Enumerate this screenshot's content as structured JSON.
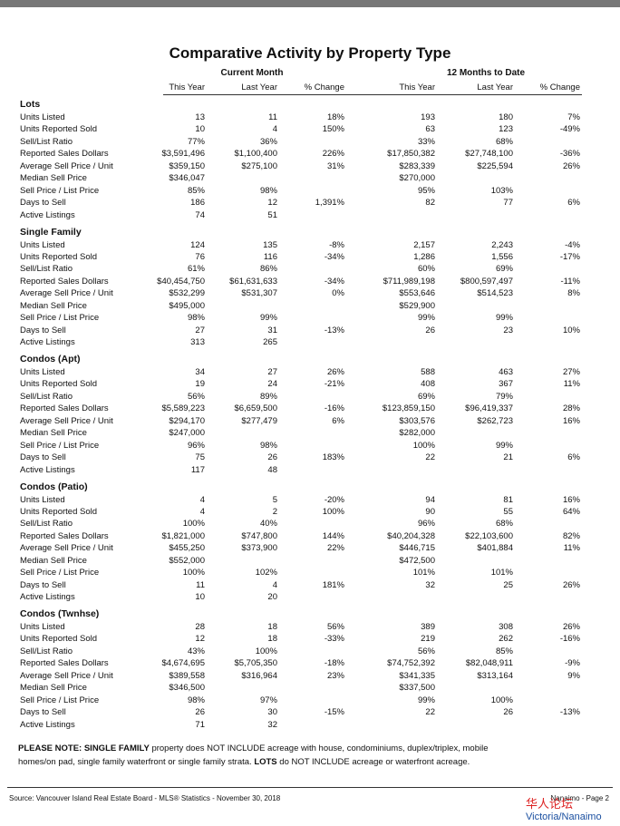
{
  "title": "Comparative Activity by Property Type",
  "groups": [
    "Current Month",
    "12 Months to Date"
  ],
  "columns": [
    "This Year",
    "Last Year",
    "% Change",
    "This Year",
    "Last Year",
    "% Change"
  ],
  "sections": [
    {
      "name": "Lots",
      "rows": [
        [
          "Units Listed",
          "13",
          "11",
          "18%",
          "193",
          "180",
          "7%"
        ],
        [
          "Units Reported Sold",
          "10",
          "4",
          "150%",
          "63",
          "123",
          "-49%"
        ],
        [
          "Sell/List Ratio",
          "77%",
          "36%",
          null,
          "33%",
          "68%",
          null
        ],
        [
          "Reported Sales Dollars",
          "$3,591,496",
          "$1,100,400",
          "226%",
          "$17,850,382",
          "$27,748,100",
          "-36%"
        ],
        [
          "Average Sell Price / Unit",
          "$359,150",
          "$275,100",
          "31%",
          "$283,339",
          "$225,594",
          "26%"
        ],
        [
          "Median Sell Price",
          "$346,047",
          null,
          null,
          "$270,000",
          null,
          null
        ],
        [
          "Sell Price / List Price",
          "85%",
          "98%",
          null,
          "95%",
          "103%",
          null
        ],
        [
          "Days to Sell",
          "186",
          "12",
          "1,391%",
          "82",
          "77",
          "6%"
        ],
        [
          "Active Listings",
          "74",
          "51",
          null,
          null,
          null,
          null
        ]
      ]
    },
    {
      "name": "Single Family",
      "rows": [
        [
          "Units Listed",
          "124",
          "135",
          "-8%",
          "2,157",
          "2,243",
          "-4%"
        ],
        [
          "Units Reported Sold",
          "76",
          "116",
          "-34%",
          "1,286",
          "1,556",
          "-17%"
        ],
        [
          "Sell/List Ratio",
          "61%",
          "86%",
          null,
          "60%",
          "69%",
          null
        ],
        [
          "Reported Sales Dollars",
          "$40,454,750",
          "$61,631,633",
          "-34%",
          "$711,989,198",
          "$800,597,497",
          "-11%"
        ],
        [
          "Average Sell Price / Unit",
          "$532,299",
          "$531,307",
          "0%",
          "$553,646",
          "$514,523",
          "8%"
        ],
        [
          "Median Sell Price",
          "$495,000",
          null,
          null,
          "$529,900",
          null,
          null
        ],
        [
          "Sell Price / List Price",
          "98%",
          "99%",
          null,
          "99%",
          "99%",
          null
        ],
        [
          "Days to Sell",
          "27",
          "31",
          "-13%",
          "26",
          "23",
          "10%"
        ],
        [
          "Active Listings",
          "313",
          "265",
          null,
          null,
          null,
          null
        ]
      ]
    },
    {
      "name": "Condos (Apt)",
      "rows": [
        [
          "Units Listed",
          "34",
          "27",
          "26%",
          "588",
          "463",
          "27%"
        ],
        [
          "Units Reported Sold",
          "19",
          "24",
          "-21%",
          "408",
          "367",
          "11%"
        ],
        [
          "Sell/List Ratio",
          "56%",
          "89%",
          null,
          "69%",
          "79%",
          null
        ],
        [
          "Reported Sales Dollars",
          "$5,589,223",
          "$6,659,500",
          "-16%",
          "$123,859,150",
          "$96,419,337",
          "28%"
        ],
        [
          "Average Sell Price / Unit",
          "$294,170",
          "$277,479",
          "6%",
          "$303,576",
          "$262,723",
          "16%"
        ],
        [
          "Median Sell Price",
          "$247,000",
          null,
          null,
          "$282,000",
          null,
          null
        ],
        [
          "Sell Price / List Price",
          "96%",
          "98%",
          null,
          "100%",
          "99%",
          null
        ],
        [
          "Days to Sell",
          "75",
          "26",
          "183%",
          "22",
          "21",
          "6%"
        ],
        [
          "Active Listings",
          "117",
          "48",
          null,
          null,
          null,
          null
        ]
      ]
    },
    {
      "name": "Condos (Patio)",
      "rows": [
        [
          "Units Listed",
          "4",
          "5",
          "-20%",
          "94",
          "81",
          "16%"
        ],
        [
          "Units Reported Sold",
          "4",
          "2",
          "100%",
          "90",
          "55",
          "64%"
        ],
        [
          "Sell/List Ratio",
          "100%",
          "40%",
          null,
          "96%",
          "68%",
          null
        ],
        [
          "Reported Sales Dollars",
          "$1,821,000",
          "$747,800",
          "144%",
          "$40,204,328",
          "$22,103,600",
          "82%"
        ],
        [
          "Average Sell Price / Unit",
          "$455,250",
          "$373,900",
          "22%",
          "$446,715",
          "$401,884",
          "11%"
        ],
        [
          "Median Sell Price",
          "$552,000",
          null,
          null,
          "$472,500",
          null,
          null
        ],
        [
          "Sell Price / List Price",
          "100%",
          "102%",
          null,
          "101%",
          "101%",
          null
        ],
        [
          "Days to Sell",
          "11",
          "4",
          "181%",
          "32",
          "25",
          "26%"
        ],
        [
          "Active Listings",
          "10",
          "20",
          null,
          null,
          null,
          null
        ]
      ]
    },
    {
      "name": "Condos (Twnhse)",
      "rows": [
        [
          "Units Listed",
          "28",
          "18",
          "56%",
          "389",
          "308",
          "26%"
        ],
        [
          "Units Reported Sold",
          "12",
          "18",
          "-33%",
          "219",
          "262",
          "-16%"
        ],
        [
          "Sell/List Ratio",
          "43%",
          "100%",
          null,
          "56%",
          "85%",
          null
        ],
        [
          "Reported Sales Dollars",
          "$4,674,695",
          "$5,705,350",
          "-18%",
          "$74,752,392",
          "$82,048,911",
          "-9%"
        ],
        [
          "Average Sell Price / Unit",
          "$389,558",
          "$316,964",
          "23%",
          "$341,335",
          "$313,164",
          "9%"
        ],
        [
          "Median Sell Price",
          "$346,500",
          null,
          null,
          "$337,500",
          null,
          null
        ],
        [
          "Sell Price / List Price",
          "98%",
          "97%",
          null,
          "99%",
          "100%",
          null
        ],
        [
          "Days to Sell",
          "26",
          "30",
          "-15%",
          "22",
          "26",
          "-13%"
        ],
        [
          "Active Listings",
          "71",
          "32",
          null,
          null,
          null,
          null
        ]
      ]
    }
  ],
  "note": {
    "parts": [
      {
        "text": "PLEASE NOTE: SINGLE FAMILY",
        "bold": true
      },
      {
        "text": " property does NOT INCLUDE acreage with house, condominiums, duplex/triplex, mobile homes/on pad, single family waterfront or single family strata. ",
        "bold": false
      },
      {
        "text": "LOTS",
        "bold": true
      },
      {
        "text": " do NOT INCLUDE acreage or waterfront acreage.",
        "bold": false
      }
    ]
  },
  "footer": {
    "source": "Source: Vancouver Island Real Estate Board - MLS® Statistics - November 30, 2018",
    "page": "Nanaimo - Page 2"
  },
  "watermark": {
    "cn": "华人论坛",
    "site": "Victoria/Nanaimo"
  }
}
